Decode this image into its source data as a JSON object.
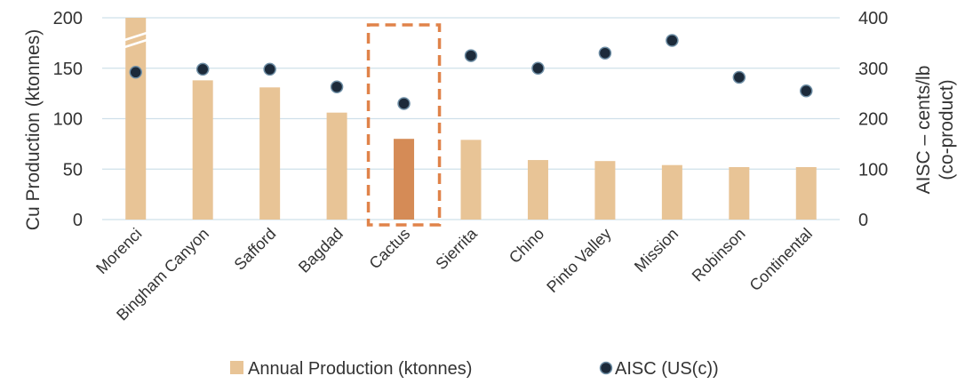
{
  "chart_data": {
    "type": "bar",
    "categories": [
      "Morenci",
      "Bingham Canyon",
      "Safford",
      "Bagdad",
      "Cactus",
      "Sierrita",
      "Chino",
      "Pinto Valley",
      "Mission",
      "Robinson",
      "Continental"
    ],
    "series": [
      {
        "name": "Annual Production (ktonnes)",
        "type": "bar",
        "axis": "left",
        "values": [
          200,
          138,
          131,
          106,
          80,
          79,
          59,
          58,
          54,
          52,
          52
        ],
        "truncated_index": 0
      },
      {
        "name": "AISC (US(c))",
        "type": "scatter",
        "axis": "right",
        "values": [
          292,
          298,
          298,
          263,
          230,
          325,
          300,
          330,
          355,
          282,
          255
        ]
      }
    ],
    "highlight": {
      "category": "Cactus",
      "bar_color": "#d58b56",
      "box_color": "#e0834a"
    },
    "ylabel_left": "Cu Production (ktonnes)",
    "ylabel_right_line1": "AISC – cents/lb",
    "ylabel_right_line2": "(co-product)",
    "ylim_left": [
      0,
      200
    ],
    "ylim_right": [
      0,
      400
    ],
    "yticks_left": [
      "0",
      "50",
      "100",
      "150",
      "200"
    ],
    "yticks_right": [
      "0",
      "100",
      "200",
      "300",
      "400"
    ],
    "grid": true,
    "legend_position": "bottom",
    "colors": {
      "bar": "#e8c496",
      "point": "#1c2a3a",
      "point_edge": "#6f8fa6",
      "grid": "#cfe0ea"
    }
  }
}
